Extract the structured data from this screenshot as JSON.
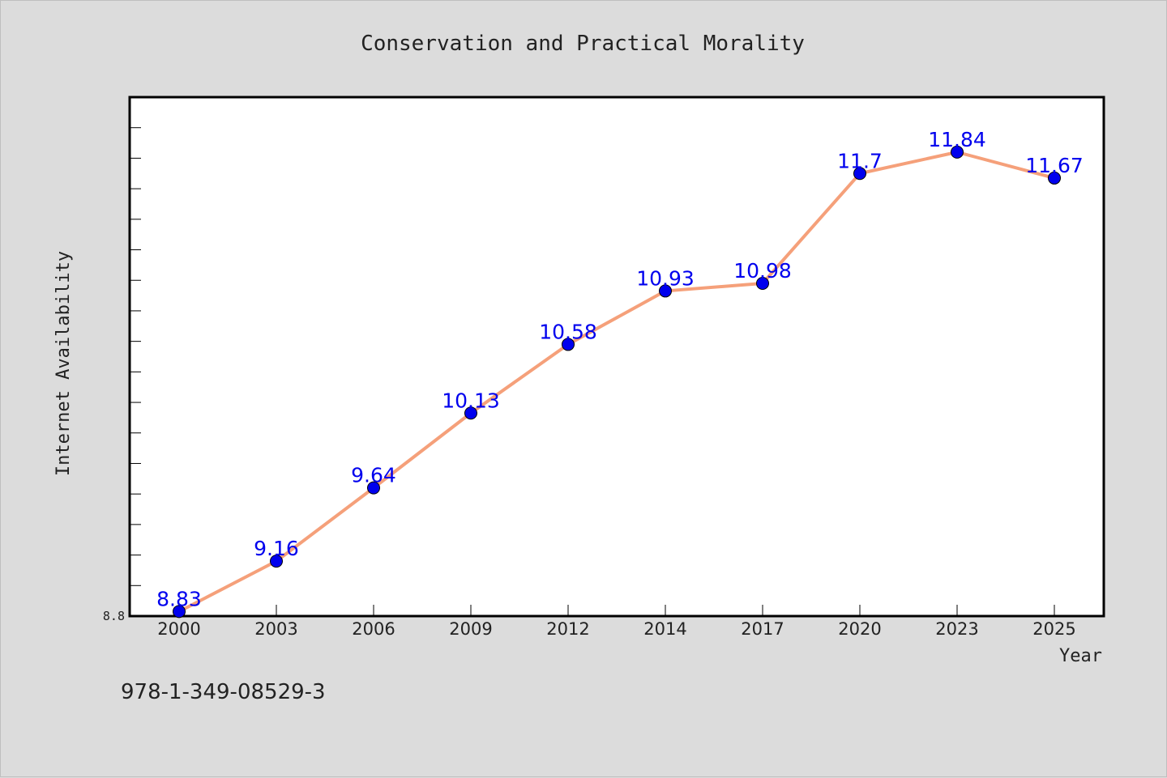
{
  "colors": {
    "background": "#dcdcdc",
    "plot_background": "#ffffff",
    "line": "#f5a07a",
    "marker": "#0000ee",
    "data_label": "#0000ee"
  },
  "chart_data": {
    "type": "line",
    "title": "Conservation and Practical Morality",
    "xlabel": "Year",
    "ylabel": "Internet Availability",
    "categories": [
      "2000",
      "2003",
      "2006",
      "2009",
      "2012",
      "2014",
      "2017",
      "2020",
      "2023",
      "2025"
    ],
    "series": [
      {
        "values": [
          8.83,
          9.16,
          9.64,
          10.13,
          10.58,
          10.93,
          10.98,
          11.7,
          11.84,
          11.67
        ],
        "labels": [
          "8.83",
          "9.16",
          "9.64",
          "10.13",
          "10.58",
          "10.93",
          "10.98",
          "11.7",
          "11.84",
          "11.67"
        ]
      }
    ],
    "ylim": [
      8.8,
      12.2
    ],
    "yticks": [
      "8.8"
    ],
    "grid": false,
    "legend": "none"
  },
  "footer": {
    "isbn": "978-1-349-08529-3"
  }
}
